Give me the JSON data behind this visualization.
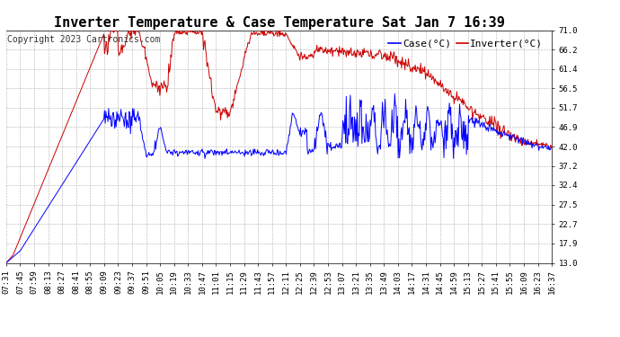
{
  "title": "Inverter Temperature & Case Temperature Sat Jan 7 16:39",
  "copyright": "Copyright 2023 Cartronics.com",
  "legend_case": "Case(°C)",
  "legend_inverter": "Inverter(°C)",
  "case_color": "#0000ff",
  "inverter_color": "#cc0000",
  "bg_color": "#ffffff",
  "grid_color": "#b0b0b0",
  "yticks": [
    13.0,
    17.9,
    22.7,
    27.5,
    32.4,
    37.2,
    42.0,
    46.9,
    51.7,
    56.5,
    61.4,
    66.2,
    71.0
  ],
  "ylim": [
    13.0,
    71.0
  ],
  "xtick_labels": [
    "07:31",
    "07:45",
    "07:59",
    "08:13",
    "08:27",
    "08:41",
    "08:55",
    "09:09",
    "09:23",
    "09:37",
    "09:51",
    "10:05",
    "10:19",
    "10:33",
    "10:47",
    "11:01",
    "11:15",
    "11:29",
    "11:43",
    "11:57",
    "12:11",
    "12:25",
    "12:39",
    "12:53",
    "13:07",
    "13:21",
    "13:35",
    "13:49",
    "14:03",
    "14:17",
    "14:31",
    "14:45",
    "14:59",
    "15:13",
    "15:27",
    "15:41",
    "15:55",
    "16:09",
    "16:23",
    "16:37"
  ],
  "title_fontsize": 11,
  "copyright_fontsize": 7,
  "legend_fontsize": 8,
  "tick_fontsize": 6.5
}
